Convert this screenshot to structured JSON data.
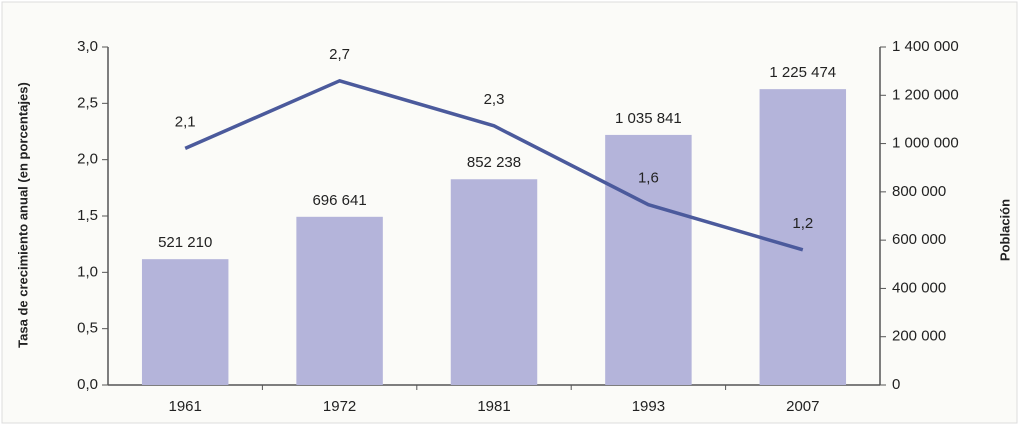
{
  "chart_data": {
    "type": "combo",
    "categories": [
      "1961",
      "1972",
      "1981",
      "1993",
      "2007"
    ],
    "ylabel": "Tasa de crecimiento anual (en porcentajes)",
    "y2label": "Población",
    "ylim": [
      0,
      3
    ],
    "yticks": [
      {
        "value": 0,
        "label": "0,0"
      },
      {
        "value": 0.5,
        "label": "0,5"
      },
      {
        "value": 1,
        "label": "1,0"
      },
      {
        "value": 1.5,
        "label": "1,5"
      },
      {
        "value": 2,
        "label": "2,0"
      },
      {
        "value": 2.5,
        "label": "2,5"
      },
      {
        "value": 3,
        "label": "3,0"
      }
    ],
    "y2lim": [
      0,
      1400000
    ],
    "y2ticks": [
      0,
      {
        "value": 200000,
        "label": "200 000"
      },
      {
        "value": 400000,
        "label": "400 000"
      },
      {
        "value": 600000,
        "label": "600 000"
      },
      {
        "value": 800000,
        "label": "800 000"
      },
      {
        "value": 1000000,
        "label": "1 000 000"
      },
      {
        "value": 1200000,
        "label": "1 200 000"
      },
      {
        "value": 1400000,
        "label": "1 400 000"
      }
    ],
    "series": [
      {
        "type": "bar",
        "axis": "y2",
        "color": "#b4b4da",
        "values": [
          521210,
          696641,
          852238,
          1035841,
          1225474
        ],
        "value_labels": [
          "521 210",
          "696 641",
          "852 238",
          "1 035 841",
          "1 225 474"
        ]
      },
      {
        "type": "line",
        "axis": "y",
        "color": "#4b5a9c",
        "values": [
          2.1,
          2.7,
          2.3,
          1.6,
          1.2
        ],
        "value_labels": [
          "2,1",
          "2,7",
          "2,3",
          "1,6",
          "1,2"
        ]
      }
    ]
  }
}
